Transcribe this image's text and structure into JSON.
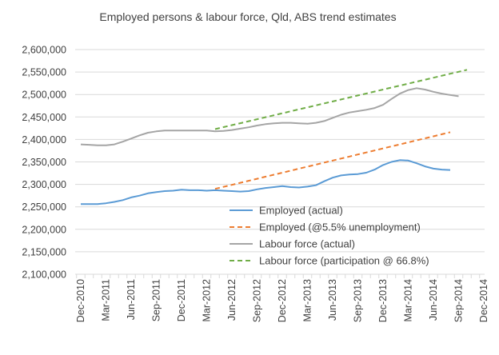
{
  "chart_data": {
    "type": "line",
    "title": "Employed persons & labour force, Qld, ABS trend estimates",
    "xlabel": "",
    "ylabel": "",
    "ylim": [
      2100000,
      2600000
    ],
    "yticks": [
      2100000,
      2150000,
      2200000,
      2250000,
      2300000,
      2350000,
      2400000,
      2450000,
      2500000,
      2550000,
      2600000
    ],
    "ytick_labels": [
      "2,100,000",
      "2,150,000",
      "2,200,000",
      "2,250,000",
      "2,300,000",
      "2,350,000",
      "2,400,000",
      "2,450,000",
      "2,500,000",
      "2,550,000",
      "2,600,000"
    ],
    "x_start": "Dec-2010",
    "x_periods": 49,
    "xtick_labels": [
      "Dec-2010",
      "Mar-2011",
      "Jun-2011",
      "Sep-2011",
      "Dec-2011",
      "Mar-2012",
      "Jun-2012",
      "Sep-2012",
      "Dec-2012",
      "Mar-2013",
      "Jun-2013",
      "Sep-2013",
      "Dec-2013",
      "Mar-2014",
      "Jun-2014",
      "Sep-2014",
      "Dec-2014"
    ],
    "legend_position": "bottom-center",
    "grid": true,
    "series": [
      {
        "name": "Employed (actual)",
        "color": "#5B9BD5",
        "dash": "solid",
        "start_index": 0,
        "values": [
          2256000,
          2256000,
          2256000,
          2258000,
          2261000,
          2265000,
          2271000,
          2275000,
          2280000,
          2283000,
          2285000,
          2286000,
          2288000,
          2287000,
          2287000,
          2286000,
          2287000,
          2286000,
          2285000,
          2284000,
          2285000,
          2289000,
          2292000,
          2294000,
          2296000,
          2294000,
          2293000,
          2295000,
          2298000,
          2307000,
          2315000,
          2320000,
          2322000,
          2323000,
          2326000,
          2333000,
          2343000,
          2350000,
          2354000,
          2353000,
          2347000,
          2340000,
          2335000,
          2333000,
          2332000
        ]
      },
      {
        "name": "Employed (@5.5% unemployment)",
        "color": "#ED7D31",
        "dash": "dashed",
        "start_index": 16,
        "values": [
          2290000,
          2294500,
          2299000,
          2303500,
          2308000,
          2312500,
          2317000,
          2321500,
          2326000,
          2330500,
          2335000,
          2339500,
          2344000,
          2348500,
          2353000,
          2357500,
          2362000,
          2366500,
          2371000,
          2375500,
          2380000,
          2384500,
          2389000,
          2393500,
          2398000,
          2402500,
          2407000,
          2411500,
          2416000
        ]
      },
      {
        "name": "Labour force (actual)",
        "color": "#A5A5A5",
        "dash": "solid",
        "start_index": 0,
        "values": [
          2389000,
          2388000,
          2387000,
          2387000,
          2389000,
          2395000,
          2402000,
          2409000,
          2415000,
          2418000,
          2420000,
          2420000,
          2420000,
          2420000,
          2420000,
          2420000,
          2418000,
          2419000,
          2421000,
          2424000,
          2427000,
          2431000,
          2434000,
          2436000,
          2437000,
          2437000,
          2436000,
          2435000,
          2437000,
          2441000,
          2448000,
          2455000,
          2460000,
          2463000,
          2466000,
          2470000,
          2477000,
          2490000,
          2502000,
          2510000,
          2514000,
          2511000,
          2506000,
          2502000,
          2499000,
          2496000
        ]
      },
      {
        "name": "Labour force (participation @ 66.8%)",
        "color": "#70AD47",
        "dash": "dashed",
        "start_index": 16,
        "values": [
          2423000,
          2427400,
          2431800,
          2436200,
          2440600,
          2445000,
          2449400,
          2453800,
          2458200,
          2462600,
          2467000,
          2471400,
          2475800,
          2480200,
          2484600,
          2489000,
          2493400,
          2497800,
          2502200,
          2506600,
          2511000,
          2515400,
          2519800,
          2524200,
          2528600,
          2533000,
          2537400,
          2541800,
          2546200,
          2550600,
          2555000
        ]
      }
    ]
  }
}
